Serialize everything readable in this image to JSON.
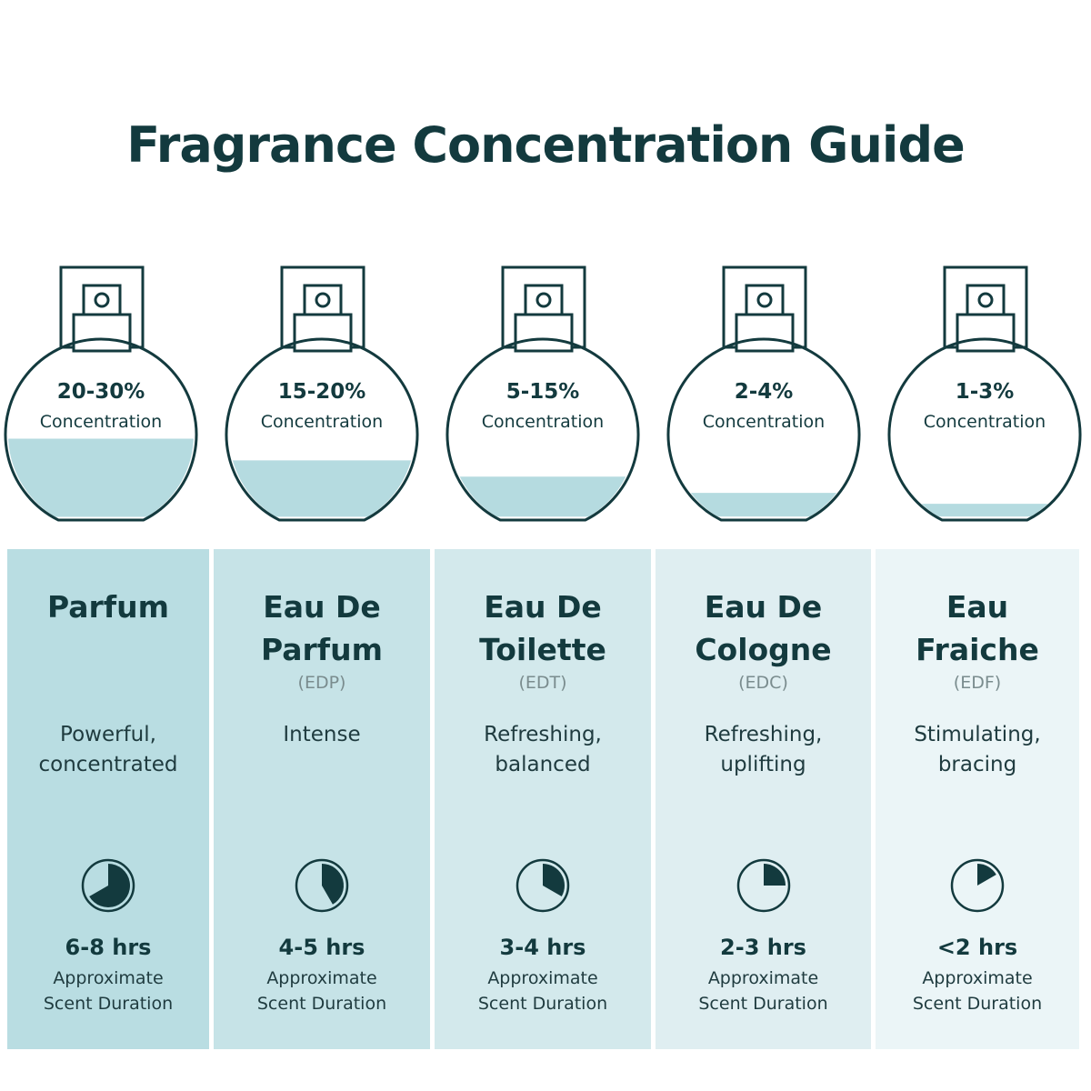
{
  "title": "Fragrance Concentration Guide",
  "colors": {
    "ink": "#133a3e",
    "liquid": "#b5dbe0"
  },
  "types": [
    {
      "concentration": "20-30%",
      "concentration_label": "Concentration",
      "fill_level": 0.45,
      "name_lines": [
        "Parfum",
        ""
      ],
      "abbr": "",
      "description_lines": [
        "Powerful,",
        "concentrated"
      ],
      "duration": "6-8 hrs",
      "duration_label_lines": [
        "Approximate",
        "Scent Duration"
      ],
      "clock_fraction": 0.667,
      "clock_icon": "clock-pie-icon",
      "bg": "#b9dde2"
    },
    {
      "concentration": "15-20%",
      "concentration_label": "Concentration",
      "fill_level": 0.33,
      "name_lines": [
        "Eau De",
        "Parfum"
      ],
      "abbr": "(EDP)",
      "description_lines": [
        "Intense",
        ""
      ],
      "duration": "4-5 hrs",
      "duration_label_lines": [
        "Approximate",
        "Scent Duration"
      ],
      "clock_fraction": 0.417,
      "clock_icon": "clock-pie-icon",
      "bg": "#c6e3e7"
    },
    {
      "concentration": "5-15%",
      "concentration_label": "Concentration",
      "fill_level": 0.24,
      "name_lines": [
        "Eau De",
        "Toilette"
      ],
      "abbr": "(EDT)",
      "description_lines": [
        "Refreshing,",
        "balanced"
      ],
      "duration": "3-4 hrs",
      "duration_label_lines": [
        "Approximate",
        "Scent Duration"
      ],
      "clock_fraction": 0.333,
      "clock_icon": "clock-pie-icon",
      "bg": "#d3e9ec"
    },
    {
      "concentration": "2-4%",
      "concentration_label": "Concentration",
      "fill_level": 0.15,
      "name_lines": [
        "Eau De",
        "Cologne"
      ],
      "abbr": "(EDC)",
      "description_lines": [
        "Refreshing,",
        "uplifting"
      ],
      "duration": "2-3 hrs",
      "duration_label_lines": [
        "Approximate",
        "Scent Duration"
      ],
      "clock_fraction": 0.25,
      "clock_icon": "clock-pie-icon",
      "bg": "#dfeef1"
    },
    {
      "concentration": "1-3%",
      "concentration_label": "Concentration",
      "fill_level": 0.09,
      "name_lines": [
        "Eau",
        "Fraiche"
      ],
      "abbr": "(EDF)",
      "description_lines": [
        "Stimulating,",
        "bracing"
      ],
      "duration": "<2 hrs",
      "duration_label_lines": [
        "Approximate",
        "Scent Duration"
      ],
      "clock_fraction": 0.167,
      "clock_icon": "clock-pie-icon",
      "bg": "#ebf5f7"
    }
  ]
}
